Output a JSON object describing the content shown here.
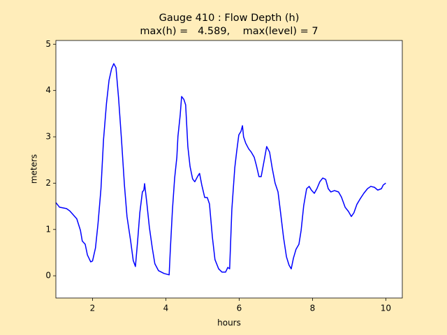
{
  "chart_data": {
    "type": "line",
    "title": "Gauge 410 : Flow Depth (h)",
    "subtitle": "max(h) =   4.589,    max(level) = 7",
    "x_label": "hours",
    "y_label": "meters",
    "x": [
      1.0,
      1.1,
      1.29,
      1.38,
      1.57,
      1.67,
      1.72,
      1.8,
      1.86,
      1.95,
      2.0,
      2.08,
      2.15,
      2.23,
      2.3,
      2.38,
      2.45,
      2.52,
      2.58,
      2.64,
      2.71,
      2.79,
      2.87,
      2.94,
      3.04,
      3.11,
      3.17,
      3.23,
      3.29,
      3.36,
      3.4,
      3.42,
      3.48,
      3.55,
      3.63,
      3.7,
      3.8,
      3.95,
      4.09,
      4.12,
      4.18,
      4.24,
      4.3,
      4.33,
      4.39,
      4.43,
      4.49,
      4.54,
      4.6,
      4.66,
      4.73,
      4.79,
      4.87,
      4.92,
      4.98,
      5.06,
      5.13,
      5.19,
      5.27,
      5.34,
      5.44,
      5.53,
      5.63,
      5.69,
      5.74,
      5.8,
      5.88,
      5.93,
      5.99,
      6.05,
      6.09,
      6.12,
      6.18,
      6.26,
      6.33,
      6.41,
      6.47,
      6.54,
      6.6,
      6.68,
      6.75,
      6.83,
      6.9,
      6.98,
      7.06,
      7.13,
      7.21,
      7.29,
      7.36,
      7.42,
      7.48,
      7.55,
      7.63,
      7.69,
      7.76,
      7.84,
      7.91,
      7.97,
      8.05,
      8.12,
      8.2,
      8.28,
      8.36,
      8.43,
      8.5,
      8.6,
      8.71,
      8.79,
      8.89,
      8.98,
      9.06,
      9.13,
      9.21,
      9.3,
      9.4,
      9.5,
      9.59,
      9.69,
      9.78,
      9.88,
      9.93,
      10.0
    ],
    "series": [
      {
        "name": "h",
        "color": "#0000ff",
        "values": [
          1.58,
          1.48,
          1.45,
          1.4,
          1.23,
          0.98,
          0.75,
          0.68,
          0.45,
          0.3,
          0.32,
          0.6,
          1.13,
          1.88,
          2.94,
          3.72,
          4.22,
          4.47,
          4.58,
          4.49,
          3.84,
          2.94,
          1.96,
          1.28,
          0.75,
          0.33,
          0.2,
          0.75,
          1.36,
          1.81,
          1.85,
          1.99,
          1.58,
          1.05,
          0.6,
          0.26,
          0.11,
          0.05,
          0.02,
          0.53,
          1.43,
          2.11,
          2.56,
          3.01,
          3.46,
          3.87,
          3.81,
          3.69,
          2.79,
          2.36,
          2.09,
          2.03,
          2.15,
          2.21,
          1.96,
          1.69,
          1.69,
          1.55,
          0.83,
          0.35,
          0.15,
          0.08,
          0.08,
          0.18,
          0.15,
          1.43,
          2.33,
          2.67,
          3.04,
          3.12,
          3.24,
          3.0,
          2.86,
          2.74,
          2.67,
          2.56,
          2.38,
          2.14,
          2.14,
          2.48,
          2.79,
          2.67,
          2.33,
          2.0,
          1.81,
          1.36,
          0.83,
          0.41,
          0.23,
          0.15,
          0.38,
          0.57,
          0.68,
          0.98,
          1.51,
          1.88,
          1.93,
          1.85,
          1.78,
          1.88,
          2.03,
          2.11,
          2.08,
          1.88,
          1.81,
          1.84,
          1.81,
          1.7,
          1.48,
          1.39,
          1.28,
          1.36,
          1.54,
          1.66,
          1.78,
          1.88,
          1.93,
          1.91,
          1.85,
          1.88,
          1.96,
          2.0
        ]
      }
    ],
    "xlim": [
      1.0,
      10.45
    ],
    "ylim": [
      -0.48,
      5.08
    ],
    "xticks": [
      2,
      4,
      6,
      8,
      10
    ],
    "yticks": [
      0,
      1,
      2,
      3,
      4,
      5
    ]
  }
}
